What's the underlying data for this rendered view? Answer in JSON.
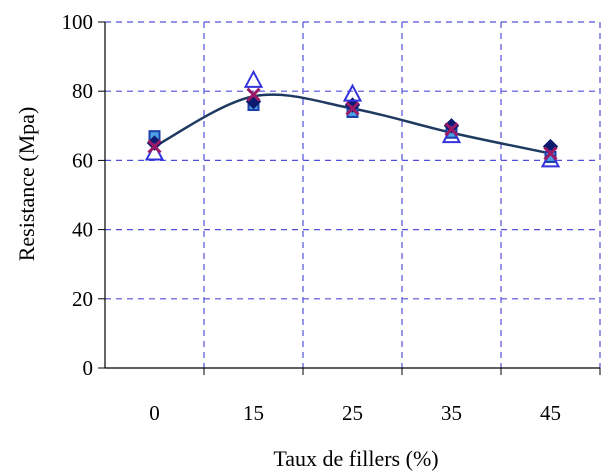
{
  "chart_data": {
    "type": "line",
    "xlabel": "Taux de fillers (%)",
    "ylabel": "Resistance (Mpa)",
    "categories": [
      "0",
      "15",
      "25",
      "35",
      "45"
    ],
    "ylim": [
      0,
      100
    ],
    "yticks": [
      "0",
      "20",
      "40",
      "60",
      "80",
      "100"
    ],
    "grid": true,
    "grid_style": "dashed",
    "colors": {
      "grid": "#5050d8",
      "trend": "#1f3a60",
      "square": "#1a3faa",
      "diamond": "#0a1a6e",
      "triangle": "#3333dd",
      "cross": "#9a1a66"
    },
    "trend_line": {
      "x": [
        "0",
        "15",
        "25",
        "35",
        "45"
      ],
      "values": [
        64,
        78.5,
        75,
        68,
        62
      ]
    },
    "series": [
      {
        "marker": "square",
        "values": [
          67,
          76,
          74,
          68,
          61
        ]
      },
      {
        "marker": "diamond",
        "values": [
          65,
          77,
          76,
          70,
          64
        ]
      },
      {
        "marker": "triangle",
        "values": [
          62,
          83,
          79,
          67,
          60
        ]
      },
      {
        "marker": "cross",
        "values": [
          64,
          79,
          75,
          69,
          62
        ]
      }
    ]
  }
}
